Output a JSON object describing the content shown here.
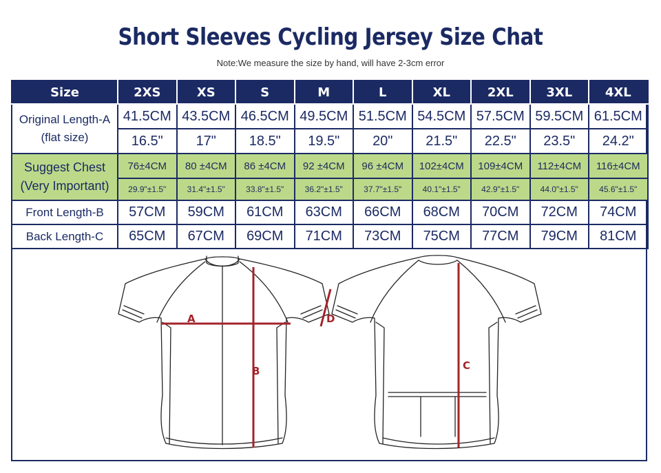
{
  "title": "Short Sleeves Cycling Jersey Size Chat",
  "note": "Note:We measure the size by hand, will have 2-3cm error",
  "table": {
    "header_label": "Size",
    "sizes": [
      "2XS",
      "XS",
      "S",
      "M",
      "L",
      "XL",
      "2XL",
      "3XL",
      "4XL"
    ],
    "original_length_label_1": "Original Length-A",
    "original_length_label_2": "(flat size)",
    "original_length_cm": [
      "41.5CM",
      "43.5CM",
      "46.5CM",
      "49.5CM",
      "51.5CM",
      "54.5CM",
      "57.5CM",
      "59.5CM",
      "61.5CM"
    ],
    "original_length_in": [
      "16.5\"",
      "17\"",
      "18.5\"",
      "19.5\"",
      "20\"",
      "21.5\"",
      "22.5\"",
      "23.5\"",
      "24.2\""
    ],
    "chest_label_1": "Suggest Chest",
    "chest_label_2": "(Very Important)",
    "chest_cm": [
      "76±4CM",
      "80 ±4CM",
      "86 ±4CM",
      "92 ±4CM",
      "96 ±4CM",
      "102±4CM",
      "109±4CM",
      "112±4CM",
      "116±4CM"
    ],
    "chest_in": [
      "29.9\"±1.5\"",
      "31.4\"±1.5\"",
      "33.8\"±1.5\"",
      "36.2\"±1.5\"",
      "37.7\"±1.5\"",
      "40.1\"±1.5\"",
      "42.9\"±1.5\"",
      "44.0\"±1.5\"",
      "45.6\"±1.5\""
    ],
    "front_length_label": "Front Length-B",
    "front_length": [
      "57CM",
      "59CM",
      "61CM",
      "63CM",
      "66CM",
      "68CM",
      "70CM",
      "72CM",
      "74CM"
    ],
    "back_length_label": "Back Length-C",
    "back_length": [
      "65CM",
      "67CM",
      "69CM",
      "71CM",
      "73CM",
      "75CM",
      "77CM",
      "79CM",
      "81CM"
    ]
  },
  "diagram": {
    "label_a": "A",
    "label_b": "B",
    "label_c": "C",
    "label_d": "D"
  },
  "colors": {
    "navy": "#1b2a63",
    "green": "#bcd98a",
    "measure_red": "#a3232a"
  }
}
